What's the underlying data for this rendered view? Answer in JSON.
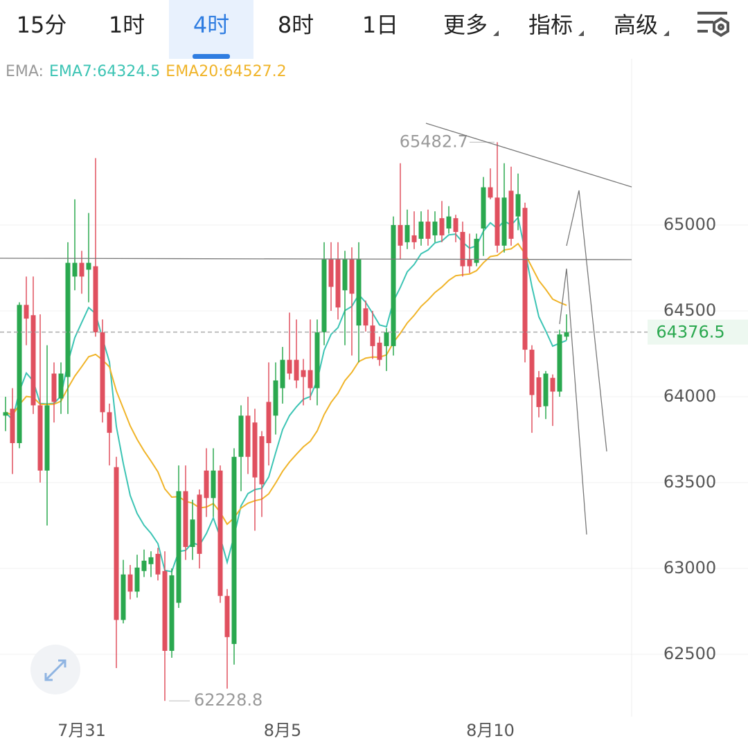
{
  "tabs": [
    "15分",
    "1时",
    "4时",
    "8时",
    "1日"
  ],
  "active_tab": 2,
  "menus": [
    "更多",
    "指标",
    "高级"
  ],
  "chart_data": {
    "type": "candlestick",
    "legend": [
      "EMA:",
      "EMA7:64324.5",
      "EMA20:64527.2"
    ],
    "ema_colors": [
      "#999999",
      "#3cc4b4",
      "#f0b429"
    ],
    "ema_periods_from_legend": true,
    "categories": [
      null,
      null,
      null,
      null,
      null,
      null,
      null,
      null,
      null,
      null,
      null,
      "7月31",
      null,
      null,
      null,
      null,
      null,
      null,
      null,
      null,
      null,
      null,
      null,
      null,
      null,
      null,
      null,
      null,
      null,
      null,
      null,
      null,
      null,
      null,
      null,
      null,
      null,
      null,
      null,
      null,
      "8月5",
      null,
      null,
      null,
      null,
      null,
      null,
      null,
      null,
      null,
      null,
      null,
      null,
      null,
      null,
      null,
      null,
      null,
      null,
      null,
      null,
      null,
      null,
      null,
      null,
      null,
      null,
      null,
      null,
      null,
      "8月10",
      null,
      null,
      null,
      null,
      null,
      null,
      null,
      null,
      null,
      null,
      null
    ],
    "open": [
      63890,
      63930,
      63730,
      64535,
      64475,
      63950,
      63570,
      64135,
      63990,
      64115,
      64700,
      64780,
      64740,
      64760,
      64375,
      63910,
      63590,
      62700,
      62965,
      62865,
      62985,
      63025,
      63085,
      62985,
      62520,
      62800,
      63450,
      63125,
      63430,
      63570,
      63410,
      63570,
      62840,
      62560,
      63650,
      63890,
      63850,
      63770,
      63970,
      63890,
      64050,
      64215,
      64215,
      64155,
      64155,
      64050,
      64375,
      64800,
      64800,
      64620,
      64800,
      64415,
      64515,
      64415,
      64315,
      64295,
      64295,
      65000,
      64900,
      64940,
      64920,
      65020,
      64940,
      65040,
      64980,
      65040,
      64960,
      64800,
      64780,
      64980,
      65220,
      65160,
      64880,
      65200,
      65050,
      65100,
      64274,
      64113,
      63945,
      64110,
      64030,
      64350
    ],
    "high": [
      64000,
      64050,
      64550,
      64700,
      64700,
      64480,
      64300,
      64200,
      64200,
      64900,
      65150,
      64850,
      65070,
      65390,
      64450,
      63960,
      63650,
      63050,
      63020,
      63080,
      63110,
      63100,
      63120,
      63100,
      63000,
      63600,
      63600,
      63400,
      63460,
      63700,
      63700,
      63600,
      62880,
      63700,
      63950,
      64000,
      63930,
      63800,
      64200,
      64200,
      64290,
      64490,
      64450,
      64220,
      64450,
      64450,
      64900,
      64900,
      64900,
      64850,
      64870,
      64900,
      64560,
      64500,
      64350,
      64400,
      65050,
      65360,
      65090,
      65080,
      65080,
      65090,
      65080,
      65140,
      65110,
      65060,
      65020,
      64950,
      64950,
      65280,
      65330,
      65482.7,
      65360,
      65340,
      65300,
      65130,
      64300,
      64150,
      64150,
      64130,
      64390,
      64480
    ],
    "low": [
      63800,
      63550,
      63700,
      64300,
      63900,
      63500,
      63250,
      63850,
      63900,
      63900,
      64620,
      64600,
      64550,
      64350,
      63850,
      63600,
      62420,
      62680,
      62820,
      62830,
      62950,
      62950,
      62930,
      62228.8,
      62480,
      62770,
      63050,
      63050,
      63000,
      63300,
      63300,
      62800,
      62300,
      62440,
      63450,
      63550,
      63220,
      63300,
      63600,
      63780,
      63960,
      64100,
      64050,
      63950,
      63980,
      63950,
      64300,
      64500,
      64450,
      64300,
      64240,
      64200,
      64380,
      64220,
      64180,
      64150,
      64240,
      64800,
      64860,
      64860,
      64880,
      64880,
      64900,
      64900,
      64950,
      64900,
      64700,
      64720,
      64760,
      64820,
      65150,
      64840,
      64840,
      64880,
      64970,
      64200,
      63790,
      63880,
      63870,
      63830,
      64000,
      64330
    ],
    "close": [
      63910,
      63730,
      64535,
      64455,
      63950,
      63570,
      63950,
      63970,
      64135,
      64780,
      64780,
      64700,
      64780,
      64375,
      63910,
      63790,
      62700,
      62965,
      62865,
      63005,
      63045,
      63065,
      62965,
      62520,
      62960,
      63450,
      63125,
      63285,
      63085,
      63410,
      63570,
      62840,
      62600,
      63650,
      63890,
      63650,
      63530,
      63490,
      63730,
      64095,
      64215,
      64135,
      64095,
      64115,
      64050,
      64375,
      64800,
      64640,
      64520,
      64800,
      64600,
      64800,
      64415,
      64295,
      64215,
      64375,
      65000,
      64880,
      65000,
      64900,
      65020,
      64920,
      65020,
      64940,
      65050,
      64960,
      64760,
      64760,
      64920,
      65220,
      65160,
      64880,
      65160,
      64920,
      65180,
      64274,
      64010,
      63940,
      64135,
      64030,
      64363,
      64376.5
    ],
    "up_color": "#2aa84f",
    "down_color": "#e0505f",
    "ylim": [
      62137,
      65968
    ],
    "yticks": [
      62500,
      63000,
      63500,
      64000,
      64500,
      65000
    ],
    "grid": true,
    "high_label": 65482.7,
    "low_label": 62228.8,
    "last_price": 64376.5
  }
}
